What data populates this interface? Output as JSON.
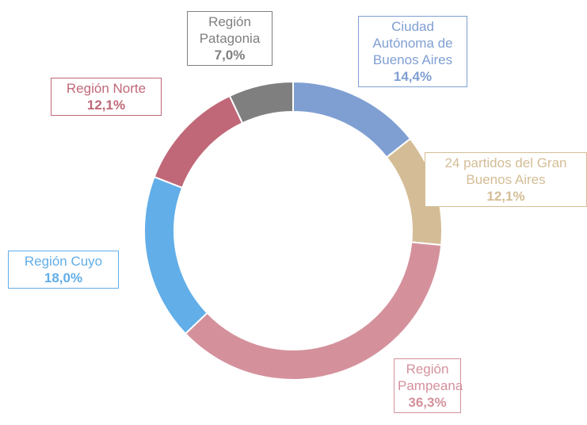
{
  "chart_data": {
    "type": "donut",
    "categories": [
      "Ciudad Autónoma de Buenos Aires",
      "24 partidos del Gran Buenos Aires",
      "Región Pampeana",
      "Región Cuyo",
      "Región Norte",
      "Región Patagonia"
    ],
    "values": [
      14.4,
      12.1,
      36.3,
      18.0,
      12.1,
      7.0
    ],
    "value_labels": [
      "14,4%",
      "12,1%",
      "36,3%",
      "18,0%",
      "12,1%",
      "7,0%"
    ],
    "colors": [
      "#7f9fd3",
      "#d4bd96",
      "#d4919c",
      "#62aee8",
      "#c06878",
      "#7f7f7f"
    ]
  }
}
